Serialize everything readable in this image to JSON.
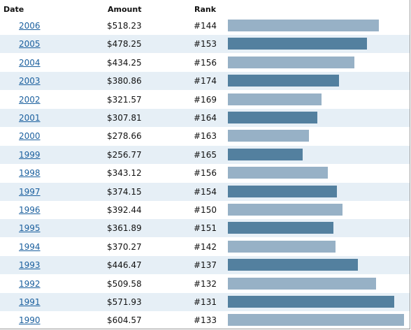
{
  "headers": {
    "date": "Date",
    "amount": "Amount",
    "rank": "Rank"
  },
  "chart_data": {
    "type": "bar",
    "orientation": "horizontal",
    "categories": [
      "2006",
      "2005",
      "2004",
      "2003",
      "2002",
      "2001",
      "2000",
      "1999",
      "1998",
      "1997",
      "1996",
      "1995",
      "1994",
      "1993",
      "1992",
      "1991",
      "1990"
    ],
    "amounts": [
      "$518.23",
      "$478.25",
      "$434.25",
      "$380.86",
      "$321.57",
      "$307.81",
      "$278.66",
      "$256.77",
      "$343.12",
      "$374.15",
      "$392.44",
      "$361.89",
      "$370.27",
      "$446.47",
      "$509.58",
      "$571.93",
      "$604.57"
    ],
    "values": [
      518.23,
      478.25,
      434.25,
      380.86,
      321.57,
      307.81,
      278.66,
      256.77,
      343.12,
      374.15,
      392.44,
      361.89,
      370.27,
      446.47,
      509.58,
      571.93,
      604.57
    ],
    "ranks": [
      "#144",
      "#153",
      "#156",
      "#174",
      "#169",
      "#164",
      "#163",
      "#165",
      "#156",
      "#154",
      "#150",
      "#151",
      "#142",
      "#137",
      "#132",
      "#131",
      "#133"
    ],
    "colors": {
      "light": "#97b1c6",
      "dark": "#53809f",
      "alt_row": "#e6eff6",
      "link": "#1a5f9e"
    }
  }
}
